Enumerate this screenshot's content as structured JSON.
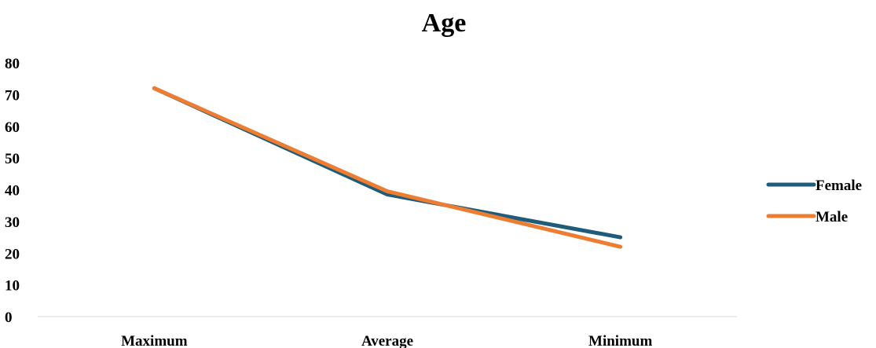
{
  "chart_data": {
    "type": "line",
    "title": "Age",
    "xlabel": "",
    "ylabel": "",
    "categories": [
      "Maximum",
      "Average",
      "Minimum"
    ],
    "ylim": [
      0,
      80
    ],
    "yticks": [
      "0",
      "10",
      "20",
      "30",
      "40",
      "50",
      "60",
      "70",
      "80"
    ],
    "grid": false,
    "legend_position": "right",
    "series": [
      {
        "name": "Female",
        "color": "#1f5c7a",
        "values": [
          72,
          38.5,
          25
        ]
      },
      {
        "name": "Male",
        "color": "#ed7d31",
        "values": [
          72,
          39.5,
          22
        ]
      }
    ]
  }
}
